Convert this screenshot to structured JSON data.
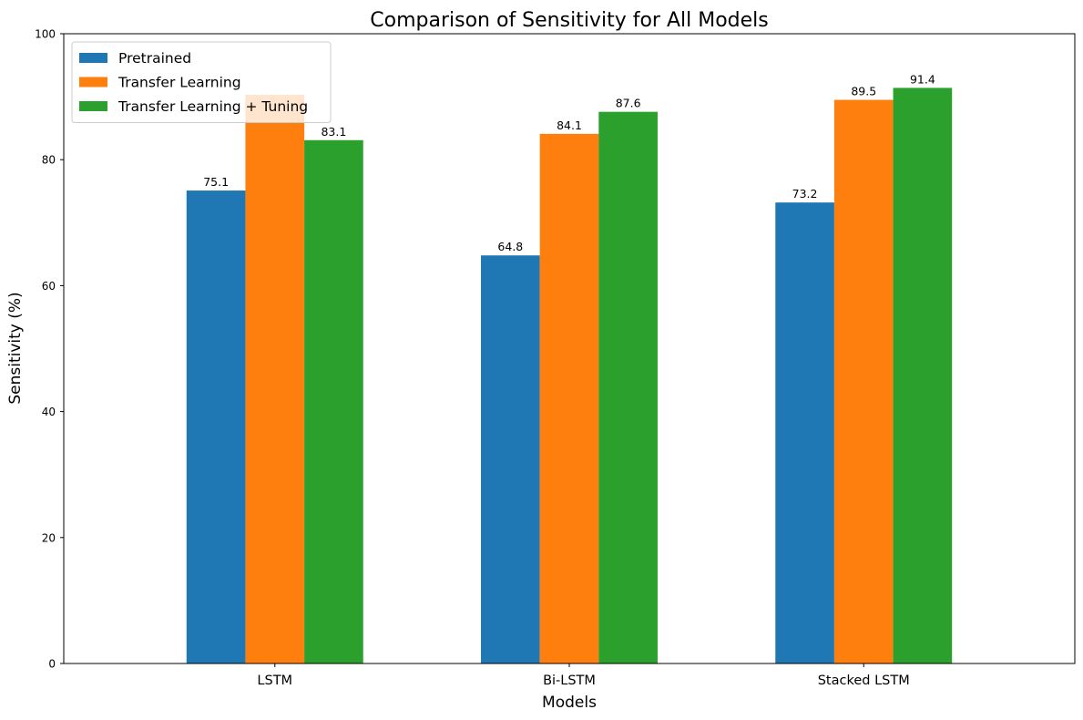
{
  "chart_data": {
    "type": "bar",
    "title": "Comparison of Sensitivity for All Models",
    "xlabel": "Models",
    "ylabel": "Sensitivity (%)",
    "categories": [
      "LSTM",
      "Bi-LSTM",
      "Stacked LSTM"
    ],
    "series": [
      {
        "name": "Pretrained",
        "values": [
          75.1,
          64.8,
          73.2
        ],
        "labels": [
          "75.1",
          "64.8",
          "73.2"
        ],
        "color": "#1f77b4"
      },
      {
        "name": "Transfer Learning",
        "values": [
          90.3,
          84.1,
          89.5
        ],
        "labels": [
          "",
          "84.1",
          "89.5"
        ],
        "color": "#ff7f0e"
      },
      {
        "name": "Transfer Learning + Tuning",
        "values": [
          83.1,
          87.6,
          91.4
        ],
        "labels": [
          "83.1",
          "87.6",
          "91.4"
        ],
        "color": "#2ca02c"
      }
    ],
    "ylim": [
      0,
      100
    ],
    "yticks": [
      0,
      20,
      40,
      60,
      80,
      100
    ],
    "ytick_labels": [
      "0",
      "20",
      "40",
      "60",
      "80",
      "100"
    ],
    "grid": false,
    "legend_position": "top-left"
  }
}
